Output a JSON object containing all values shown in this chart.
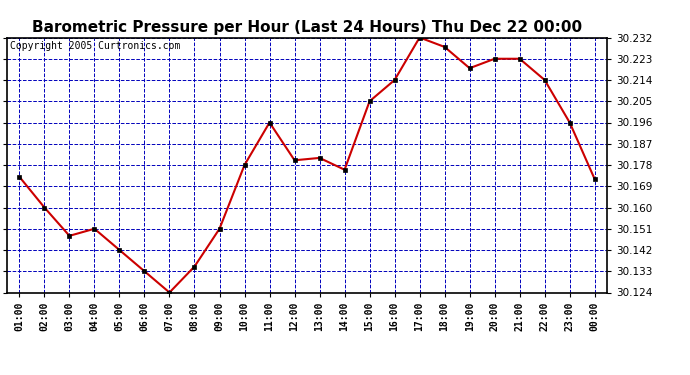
{
  "title": "Barometric Pressure per Hour (Last 24 Hours) Thu Dec 22 00:00",
  "copyright": "Copyright 2005 Curtronics.com",
  "hours": [
    "01:00",
    "02:00",
    "03:00",
    "04:00",
    "05:00",
    "06:00",
    "07:00",
    "08:00",
    "09:00",
    "10:00",
    "11:00",
    "12:00",
    "13:00",
    "14:00",
    "15:00",
    "16:00",
    "17:00",
    "18:00",
    "19:00",
    "20:00",
    "21:00",
    "22:00",
    "23:00",
    "00:00"
  ],
  "values": [
    30.173,
    30.16,
    30.148,
    30.151,
    30.142,
    30.133,
    30.124,
    30.135,
    30.151,
    30.178,
    30.196,
    30.18,
    30.181,
    30.176,
    30.205,
    30.214,
    30.232,
    30.228,
    30.219,
    30.223,
    30.223,
    30.214,
    30.196,
    30.172
  ],
  "ylim": [
    30.124,
    30.232
  ],
  "yticks": [
    30.124,
    30.133,
    30.142,
    30.151,
    30.16,
    30.169,
    30.178,
    30.187,
    30.196,
    30.205,
    30.214,
    30.223,
    30.232
  ],
  "line_color": "#cc0000",
  "marker_color": "#000000",
  "bg_color": "#ffffff",
  "grid_color": "#0000bb",
  "title_fontsize": 11,
  "copyright_fontsize": 7
}
